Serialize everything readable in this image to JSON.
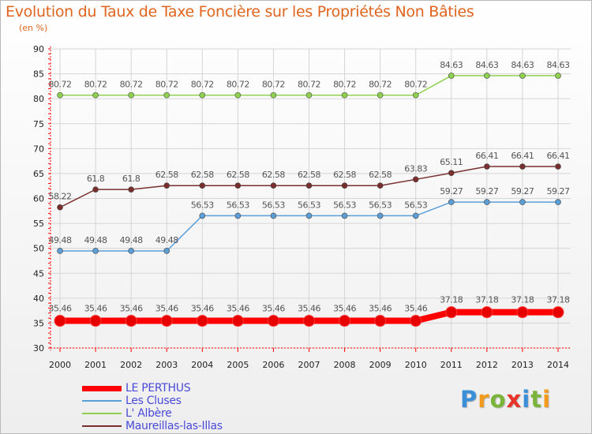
{
  "title": "Evolution du Taux de Taxe Foncière sur les Propriétés Non Bâties",
  "unit_label": "(en %)",
  "logo": {
    "letters": [
      "P",
      "r",
      "o",
      "x",
      "i",
      "t",
      "i"
    ],
    "colors": [
      "#3a8fd8",
      "#f29a1b",
      "#7ab53a",
      "#e8332a",
      "#3a8fd8",
      "#7ab53a",
      "#f29a1b"
    ]
  },
  "colors": {
    "title": "#e0641e",
    "axis": "#ff0000",
    "grid": "#d5d5d5",
    "label_text": "#555555",
    "legend_text": "#4a4ad8"
  },
  "chart_data": {
    "type": "line",
    "title": "Evolution du Taux de Taxe Foncière sur les Propriétés Non Bâties",
    "xlabel": "",
    "ylabel": "(en %)",
    "x": [
      2000,
      2001,
      2002,
      2003,
      2004,
      2005,
      2006,
      2007,
      2008,
      2009,
      2010,
      2011,
      2012,
      2013,
      2014
    ],
    "x_tick_labels": [
      "2000",
      "2001",
      "2002",
      "2003",
      "2004",
      "2005",
      "2006",
      "2007",
      "2008",
      "2009",
      "2010",
      "2011",
      "2012",
      "2013",
      "2014"
    ],
    "ylim": [
      30,
      90
    ],
    "y_ticks": [
      30,
      35,
      40,
      45,
      50,
      55,
      60,
      65,
      70,
      75,
      80,
      85,
      90
    ],
    "grid": true,
    "legend_position": "bottom-left",
    "series": [
      {
        "name": "LE PERTHUS",
        "color": "#ff0000",
        "thick": true,
        "values": [
          35.46,
          35.46,
          35.46,
          35.46,
          35.46,
          35.46,
          35.46,
          35.46,
          35.46,
          35.46,
          35.46,
          37.18,
          37.18,
          37.18,
          37.18
        ],
        "labels": [
          "35.46",
          "35.46",
          "35.46",
          "35.46",
          "35.46",
          "35.46",
          "35.46",
          "35.46",
          "35.46",
          "35.46",
          "35.46",
          "37.18",
          "37.18",
          "37.18",
          "37.18"
        ]
      },
      {
        "name": "Les Cluses",
        "color": "#5b9fd6",
        "thick": false,
        "values": [
          49.48,
          49.48,
          49.48,
          49.48,
          56.53,
          56.53,
          56.53,
          56.53,
          56.53,
          56.53,
          56.53,
          59.27,
          59.27,
          59.27,
          59.27
        ],
        "labels": [
          "49.48",
          "49.48",
          "49.48",
          "49.48",
          "56.53",
          "56.53",
          "56.53",
          "56.53",
          "56.53",
          "56.53",
          "56.53",
          "59.27",
          "59.27",
          "59.27",
          "59.27"
        ]
      },
      {
        "name": "L' Albère",
        "color": "#8fd14f",
        "thick": false,
        "values": [
          80.72,
          80.72,
          80.72,
          80.72,
          80.72,
          80.72,
          80.72,
          80.72,
          80.72,
          80.72,
          80.72,
          84.63,
          84.63,
          84.63,
          84.63
        ],
        "labels": [
          "80.72",
          "80.72",
          "80.72",
          "80.72",
          "80.72",
          "80.72",
          "80.72",
          "80.72",
          "80.72",
          "80.72",
          "80.72",
          "84.63",
          "84.63",
          "84.63",
          "84.63"
        ]
      },
      {
        "name": "Maureillas-las-Illas",
        "color": "#7a2f2f",
        "thick": false,
        "values": [
          58.22,
          61.8,
          61.8,
          62.58,
          62.58,
          62.58,
          62.58,
          62.58,
          62.58,
          62.58,
          63.83,
          65.11,
          66.41,
          66.41,
          66.41
        ],
        "labels": [
          "58.22",
          "61.8",
          "61.8",
          "62.58",
          "62.58",
          "62.58",
          "62.58",
          "62.58",
          "62.58",
          "62.58",
          "63.83",
          "65.11",
          "66.41",
          "66.41",
          "66.41"
        ]
      }
    ]
  }
}
